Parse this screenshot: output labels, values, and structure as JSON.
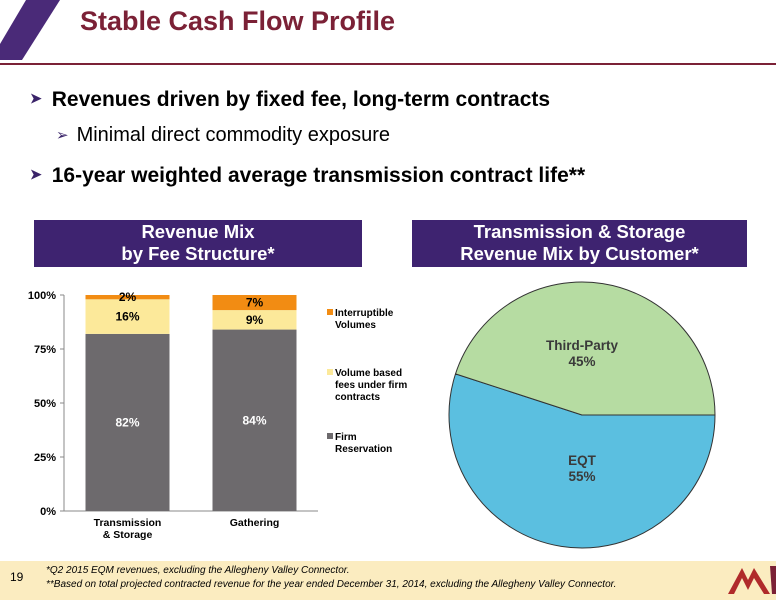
{
  "header": {
    "title": "Stable Cash Flow Profile",
    "accent_color": "#7b2136",
    "stripe_color": "#4a2a78"
  },
  "bullets": [
    "Revenues driven by fixed fee, long-term contracts",
    "Minimal direct commodity exposure",
    "16-year weighted average transmission contract life**"
  ],
  "banners": {
    "left": [
      "Revenue Mix",
      "by Fee Structure*"
    ],
    "right": [
      "Transmission & Storage",
      "Revenue Mix by Customer*"
    ],
    "color": "#3e2370"
  },
  "chart_data": [
    {
      "type": "bar",
      "stacked": true,
      "categories": [
        "Transmission & Storage",
        "Gathering"
      ],
      "category_lines": [
        [
          "Transmission",
          "& Storage"
        ],
        [
          "Gathering"
        ]
      ],
      "series": [
        {
          "name": "Firm Reservation",
          "legend_lines": [
            "Firm",
            "Reservation"
          ],
          "values": [
            82,
            84
          ],
          "labels": [
            "82%",
            "84%"
          ],
          "color": "#6d6a6d"
        },
        {
          "name": "Volume based fees under firm contracts",
          "legend_lines": [
            "Volume based",
            "fees under firm",
            "contracts"
          ],
          "values": [
            16,
            9
          ],
          "labels": [
            "16%",
            "9%"
          ],
          "color": "#fce99a"
        },
        {
          "name": "Interruptible Volumes",
          "legend_lines": [
            "Interruptible",
            "Volumes"
          ],
          "values": [
            2,
            7
          ],
          "labels": [
            "2%",
            "7%"
          ],
          "color": "#f28c13"
        }
      ],
      "ylim": [
        0,
        100
      ],
      "yticks": [
        0,
        25,
        50,
        75,
        100
      ],
      "ytick_labels": [
        "0%",
        "25%",
        "50%",
        "75%",
        "100%"
      ],
      "legend": "right"
    },
    {
      "type": "pie",
      "slices": [
        {
          "name": "EQT",
          "value": 55,
          "label": "55%",
          "color": "#5bbfe0"
        },
        {
          "name": "Third-Party",
          "value": 45,
          "label": "45%",
          "color": "#b6dca2"
        }
      ]
    }
  ],
  "footer": {
    "page_number": "19",
    "footnotes": [
      "*Q2 2015 EQM revenues, excluding the Allegheny Valley Connector.",
      "**Based on total projected contracted revenue for the year ended December 31, 2014, excluding the Allegheny Valley Connector."
    ],
    "band_color": "#fbecc0"
  }
}
